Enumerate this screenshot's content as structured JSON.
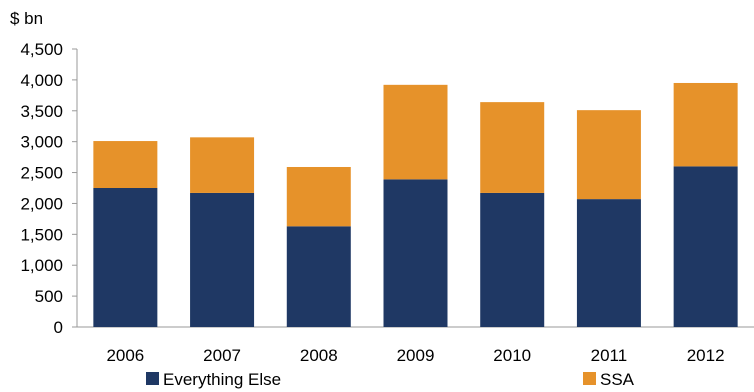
{
  "chart_data": {
    "type": "bar",
    "stacked": true,
    "unit_label": "$ bn",
    "categories": [
      "2006",
      "2007",
      "2008",
      "2009",
      "2010",
      "2011",
      "2012"
    ],
    "series": [
      {
        "name": "Everything Else",
        "color": "#1f3864",
        "values": [
          2250,
          2170,
          1630,
          2390,
          2170,
          2070,
          2600
        ]
      },
      {
        "name": "SSA",
        "color": "#e6922a",
        "values": [
          760,
          900,
          960,
          1530,
          1470,
          1440,
          1350
        ]
      }
    ],
    "ylim": [
      0,
      4500
    ],
    "yticks": [
      0,
      500,
      1000,
      1500,
      2000,
      2500,
      3000,
      3500,
      4000,
      4500
    ],
    "ytick_labels": [
      "0",
      "500",
      "1,000",
      "1,500",
      "2,000",
      "2,500",
      "3,000",
      "3,500",
      "4,000",
      "4,500"
    ],
    "grid": false,
    "legend_position": "bottom",
    "background": "#ffffff",
    "axis_color": "#999999"
  }
}
